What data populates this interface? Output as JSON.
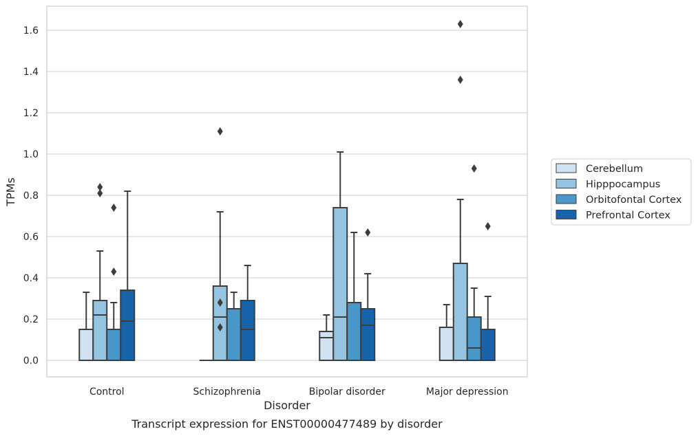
{
  "chart_data": {
    "type": "box",
    "title": "",
    "caption": "Transcript expression for ENST00000477489 by disorder",
    "xlabel": "Disorder",
    "ylabel": "TPMs",
    "ylim": [
      -0.08,
      1.72
    ],
    "yticks": [
      "0.0",
      "0.2",
      "0.4",
      "0.6",
      "0.8",
      "1.0",
      "1.2",
      "1.4",
      "1.6"
    ],
    "grid": true,
    "legend_position": "right",
    "categories": [
      "Control",
      "Schizophrenia",
      "Bipolar disorder",
      "Major depression"
    ],
    "series": [
      {
        "name": "Cerebellum",
        "color": "#d0e1f2",
        "boxes": [
          {
            "q1": 0.0,
            "median": 0.0,
            "q3": 0.15,
            "whisker_low": 0.0,
            "whisker_high": 0.33,
            "outliers": []
          },
          {
            "q1": 0.0,
            "median": 0.0,
            "q3": 0.0,
            "whisker_low": 0.0,
            "whisker_high": 0.0,
            "outliers": []
          },
          {
            "q1": 0.0,
            "median": 0.11,
            "q3": 0.14,
            "whisker_low": 0.0,
            "whisker_high": 0.22,
            "outliers": []
          },
          {
            "q1": 0.0,
            "median": 0.0,
            "q3": 0.16,
            "whisker_low": 0.0,
            "whisker_high": 0.27,
            "outliers": []
          }
        ]
      },
      {
        "name": "Hipppocampus",
        "color": "#94c4df",
        "boxes": [
          {
            "q1": 0.0,
            "median": 0.22,
            "q3": 0.29,
            "whisker_low": 0.0,
            "whisker_high": 0.53,
            "outliers": [
              0.81,
              0.84
            ]
          },
          {
            "q1": 0.0,
            "median": 0.21,
            "q3": 0.36,
            "whisker_low": 0.0,
            "whisker_high": 0.72,
            "outliers": [
              0.16,
              0.28,
              1.11
            ]
          },
          {
            "q1": 0.0,
            "median": 0.21,
            "q3": 0.74,
            "whisker_low": 0.0,
            "whisker_high": 1.01,
            "outliers": []
          },
          {
            "q1": 0.0,
            "median": 0.0,
            "q3": 0.47,
            "whisker_low": 0.0,
            "whisker_high": 0.78,
            "outliers": [
              1.36,
              1.63
            ]
          }
        ]
      },
      {
        "name": "Orbitofontal Cortex",
        "color": "#4a98c9",
        "boxes": [
          {
            "q1": 0.0,
            "median": 0.0,
            "q3": 0.15,
            "whisker_low": 0.0,
            "whisker_high": 0.28,
            "outliers": [
              0.43,
              0.74
            ]
          },
          {
            "q1": 0.0,
            "median": 0.0,
            "q3": 0.25,
            "whisker_low": 0.0,
            "whisker_high": 0.33,
            "outliers": []
          },
          {
            "q1": 0.0,
            "median": 0.0,
            "q3": 0.28,
            "whisker_low": 0.0,
            "whisker_high": 0.62,
            "outliers": []
          },
          {
            "q1": 0.0,
            "median": 0.06,
            "q3": 0.21,
            "whisker_low": 0.0,
            "whisker_high": 0.35,
            "outliers": [
              0.93
            ]
          }
        ]
      },
      {
        "name": "Prefrontal Cortex",
        "color": "#1764ab",
        "boxes": [
          {
            "q1": 0.0,
            "median": 0.19,
            "q3": 0.34,
            "whisker_low": 0.0,
            "whisker_high": 0.82,
            "outliers": []
          },
          {
            "q1": 0.0,
            "median": 0.15,
            "q3": 0.29,
            "whisker_low": 0.0,
            "whisker_high": 0.46,
            "outliers": []
          },
          {
            "q1": 0.0,
            "median": 0.17,
            "q3": 0.25,
            "whisker_low": 0.0,
            "whisker_high": 0.42,
            "outliers": [
              0.62
            ]
          },
          {
            "q1": 0.0,
            "median": 0.0,
            "q3": 0.15,
            "whisker_low": 0.0,
            "whisker_high": 0.31,
            "outliers": [
              0.65
            ]
          }
        ]
      }
    ],
    "colors": {
      "grid": "#cccccc",
      "frame": "#cccccc",
      "box_edge": "#3d3d3d",
      "text": "#262626"
    }
  }
}
